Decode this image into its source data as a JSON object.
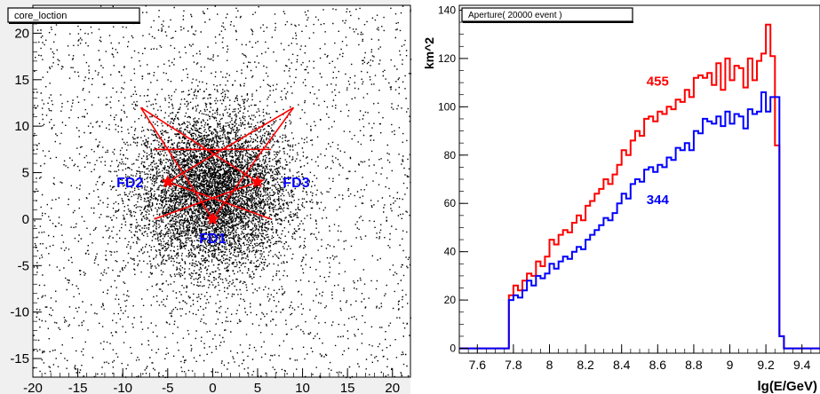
{
  "chart_data": [
    {
      "type": "scatter",
      "title": "core_loction",
      "xlim": [
        -20,
        22
      ],
      "ylim": [
        -17,
        23
      ],
      "x_ticks": [
        "-20",
        "-15",
        "-10",
        "-5",
        "0",
        "5",
        "10",
        "15",
        "20"
      ],
      "y_ticks": [
        "-15",
        "-10",
        "-5",
        "0",
        "5",
        "10",
        "15",
        "20"
      ],
      "grid": false,
      "point_cloud": {
        "center": [
          0,
          3
        ],
        "description_count": 20000,
        "color": "#000000"
      },
      "detectors": [
        {
          "label": "FD1",
          "x": 0,
          "y": 0
        },
        {
          "label": "FD2",
          "x": -5,
          "y": 4
        },
        {
          "label": "FD3",
          "x": 5,
          "y": 4
        }
      ],
      "fov_lines": [
        {
          "from": [
            0,
            0
          ],
          "to": [
            -8,
            12
          ]
        },
        {
          "from": [
            0,
            0
          ],
          "to": [
            9,
            12
          ]
        },
        {
          "from": [
            -5,
            4
          ],
          "to": [
            9,
            12
          ]
        },
        {
          "from": [
            -5,
            4
          ],
          "to": [
            6.5,
            0
          ]
        },
        {
          "from": [
            5,
            4
          ],
          "to": [
            -8,
            12
          ]
        },
        {
          "from": [
            5,
            4
          ],
          "to": [
            -6.5,
            0
          ]
        },
        {
          "from": [
            -6.5,
            7.5
          ],
          "to": [
            6.5,
            7.5
          ]
        }
      ],
      "detector_color": "#ff0000",
      "label_color": "#0000ff"
    },
    {
      "type": "line",
      "title": "Aperture( 20000 event )",
      "xlabel": "lg(E/GeV)",
      "ylabel": "km^2",
      "xlim": [
        7.5,
        9.5
      ],
      "ylim": [
        -2,
        142
      ],
      "x_ticks": [
        "7.6",
        "7.8",
        "8",
        "8.2",
        "8.4",
        "8.6",
        "8.8",
        "9",
        "9.2",
        "9.4"
      ],
      "y_ticks": [
        "0",
        "20",
        "40",
        "60",
        "80",
        "100",
        "120",
        "140"
      ],
      "grid": false,
      "bin_edges": [
        7.5,
        7.55,
        7.6,
        7.65,
        7.7,
        7.75,
        7.775,
        7.8,
        7.825,
        7.85,
        7.875,
        7.9,
        7.925,
        7.95,
        7.975,
        8.0,
        8.025,
        8.05,
        8.075,
        8.1,
        8.125,
        8.15,
        8.175,
        8.2,
        8.225,
        8.25,
        8.275,
        8.3,
        8.325,
        8.35,
        8.375,
        8.4,
        8.425,
        8.45,
        8.475,
        8.5,
        8.525,
        8.55,
        8.575,
        8.6,
        8.625,
        8.65,
        8.675,
        8.7,
        8.725,
        8.75,
        8.775,
        8.8,
        8.825,
        8.85,
        8.875,
        8.9,
        8.925,
        8.95,
        8.975,
        9.0,
        9.025,
        9.05,
        9.075,
        9.1,
        9.125,
        9.15,
        9.175,
        9.2,
        9.225,
        9.25,
        9.275,
        9.3,
        9.325,
        9.35,
        9.4,
        9.45,
        9.5
      ],
      "series": [
        {
          "name": "455",
          "color": "#ff0000",
          "values": [
            0,
            0,
            0,
            0,
            0,
            0,
            22,
            26,
            24,
            28,
            31,
            30,
            36,
            34,
            38,
            45,
            43,
            47,
            49,
            48,
            52,
            55,
            53,
            59,
            61,
            64,
            66,
            70,
            68,
            72,
            76,
            82,
            80,
            86,
            90,
            88,
            95,
            96,
            94,
            98,
            97,
            100,
            99,
            103,
            102,
            107,
            104,
            112,
            113,
            112,
            114,
            109,
            118,
            107,
            120,
            111,
            117,
            116,
            108,
            120,
            111,
            119,
            122,
            134,
            121,
            84,
            5,
            0,
            0,
            0,
            0,
            0
          ],
          "label": "455"
        },
        {
          "name": "344",
          "color": "#0000ff",
          "values": [
            0,
            0,
            0,
            0,
            0,
            0,
            20,
            22,
            21,
            24,
            28,
            26,
            30,
            29,
            31,
            35,
            33,
            36,
            38,
            37,
            40,
            42,
            41,
            45,
            47,
            49,
            51,
            54,
            53,
            56,
            60,
            64,
            62,
            68,
            70,
            69,
            74,
            75,
            73,
            76,
            75,
            79,
            78,
            83,
            82,
            85,
            82,
            90,
            89,
            95,
            94,
            93,
            96,
            92,
            98,
            93,
            97,
            96,
            91,
            99,
            97,
            98,
            106,
            98,
            104,
            104,
            5,
            0,
            0,
            0,
            0,
            0
          ],
          "label": "344"
        }
      ]
    }
  ]
}
